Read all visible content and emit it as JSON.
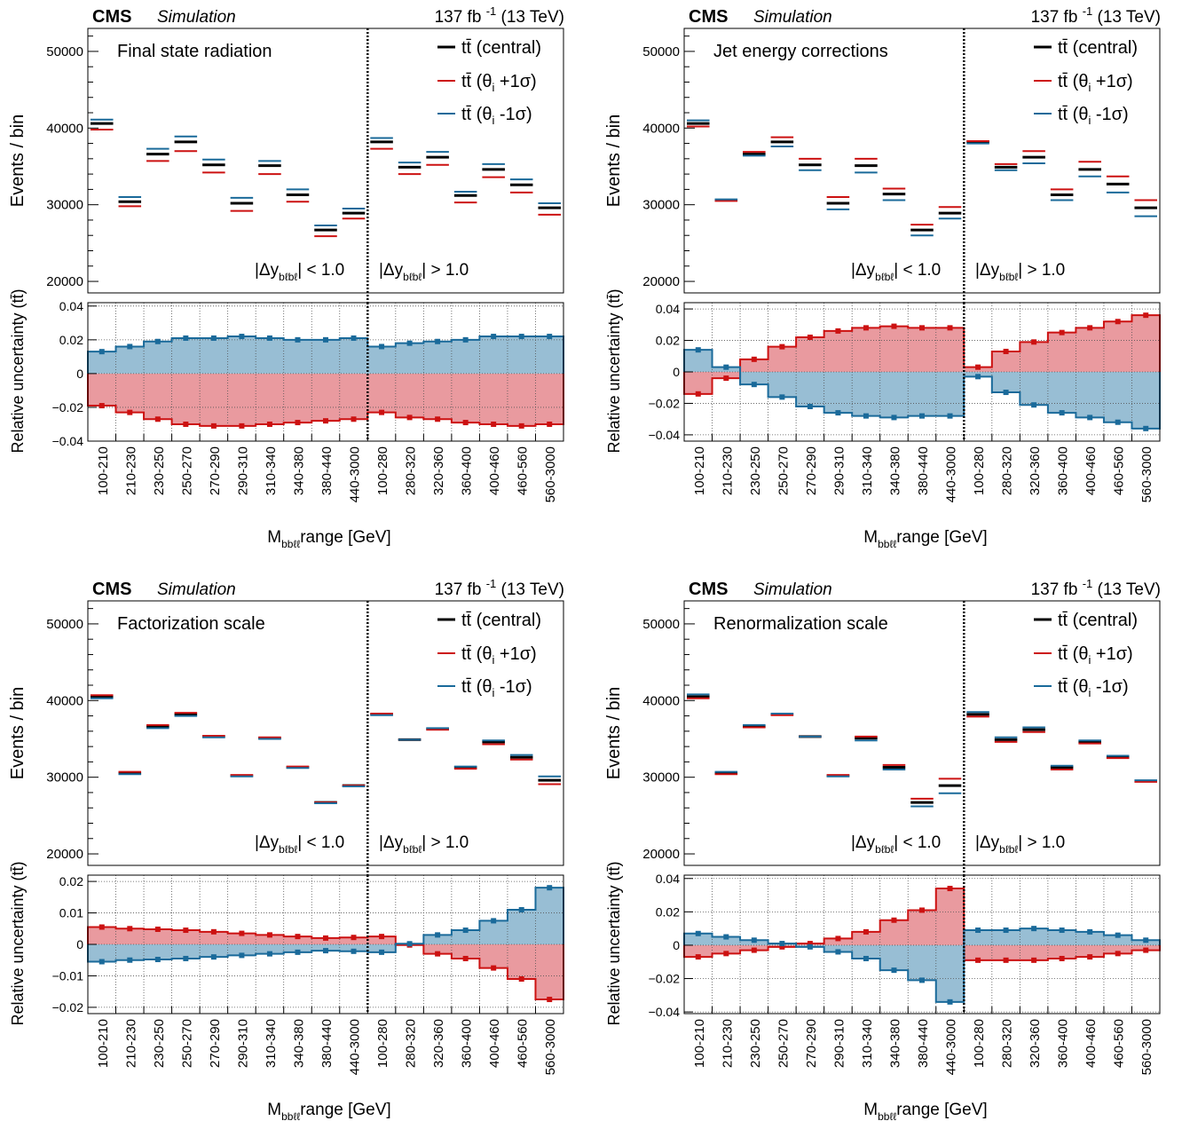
{
  "header": {
    "experiment": "CMS",
    "label": "Simulation",
    "lumi": "137 fb",
    "lumi_exp": "-1",
    "energy": "(13 TeV)"
  },
  "legend": {
    "tt": "tt̄",
    "central": "(central)",
    "up": "(θ",
    "up_sub": "i",
    "up_tail": "+1σ)",
    "down": "(θ",
    "down_sub": "i",
    "down_tail": "-1σ)"
  },
  "regions": {
    "pre": "|Δy",
    "sub": "bℓbℓ",
    "low": "| < 1.0",
    "high": "| > 1.0"
  },
  "axes": {
    "top_ylabel": "Events / bin",
    "bottom_ylabel": "Relative uncertainty (tt̄)",
    "xlabel_pre": "M",
    "xlabel_sub": "bbℓℓ",
    "xlabel_post": "range [GeV]"
  },
  "categories": [
    "100-210",
    "210-230",
    "230-250",
    "250-270",
    "270-290",
    "290-310",
    "310-340",
    "340-380",
    "380-440",
    "440-3000",
    "100-280",
    "280-320",
    "320-360",
    "360-400",
    "400-460",
    "460-560",
    "560-3000"
  ],
  "colors": {
    "central": "#000000",
    "up": "#cc1111",
    "down": "#1a6a9a",
    "up_fill": "#e8959a",
    "down_fill": "#92bbd2"
  },
  "chart_data": [
    {
      "type": "bar",
      "title": "Final state radiation",
      "categories": [
        "100-210",
        "210-230",
        "230-250",
        "250-270",
        "270-290",
        "290-310",
        "310-340",
        "340-380",
        "380-440",
        "440-3000",
        "100-280",
        "280-320",
        "320-360",
        "360-400",
        "400-460",
        "460-560",
        "560-3000"
      ],
      "events_ylim": [
        18500,
        53000
      ],
      "events_ticks": [
        20000,
        30000,
        40000,
        50000
      ],
      "series": [
        {
          "name": "tt̄ (central)",
          "values": [
            40600,
            30400,
            36600,
            38200,
            35200,
            30200,
            35100,
            31300,
            26700,
            28900,
            38200,
            34900,
            36200,
            31200,
            34600,
            32600,
            29600
          ]
        },
        {
          "name": "tt̄ (θi +1σ)",
          "values": [
            39800,
            29800,
            35700,
            37000,
            34200,
            29200,
            34000,
            30400,
            25900,
            28200,
            37300,
            34000,
            35200,
            30300,
            33600,
            31600,
            28700
          ]
        },
        {
          "name": "tt̄ (θi -1σ)",
          "values": [
            41100,
            31000,
            37300,
            38900,
            35900,
            30900,
            35700,
            32000,
            27300,
            29500,
            38700,
            35500,
            36900,
            31700,
            35300,
            33300,
            30200
          ]
        }
      ],
      "ratio_ylim": [
        -0.04,
        0.042
      ],
      "ratio_ticks": [
        -0.04,
        -0.02,
        0,
        0.02,
        0.04
      ],
      "ratio_ticklabels": [
        "−0.04",
        "−0.02",
        "0",
        "0.02",
        "0.04"
      ],
      "ratio_up": [
        -0.019,
        -0.023,
        -0.027,
        -0.03,
        -0.031,
        -0.031,
        -0.03,
        -0.029,
        -0.028,
        -0.027,
        -0.023,
        -0.026,
        -0.027,
        -0.029,
        -0.03,
        -0.031,
        -0.03
      ],
      "ratio_down": [
        0.013,
        0.016,
        0.019,
        0.021,
        0.021,
        0.022,
        0.021,
        0.02,
        0.02,
        0.021,
        0.016,
        0.018,
        0.019,
        0.02,
        0.022,
        0.022,
        0.022
      ]
    },
    {
      "type": "bar",
      "title": "Jet energy corrections",
      "categories": [
        "100-210",
        "210-230",
        "230-250",
        "250-270",
        "270-290",
        "290-310",
        "310-340",
        "340-380",
        "380-440",
        "440-3000",
        "100-280",
        "280-320",
        "320-360",
        "360-400",
        "400-460",
        "460-560",
        "560-3000"
      ],
      "events_ylim": [
        18500,
        53000
      ],
      "events_ticks": [
        20000,
        30000,
        40000,
        50000
      ],
      "series": [
        {
          "name": "tt̄ (central)",
          "values": [
            40600,
            30600,
            36600,
            38200,
            35200,
            30200,
            35100,
            31400,
            26700,
            28900,
            38200,
            34900,
            36200,
            31300,
            34600,
            32700,
            29600
          ]
        },
        {
          "name": "tt̄ (θi +1σ)",
          "values": [
            40200,
            30500,
            36900,
            38800,
            36000,
            31000,
            36000,
            32100,
            27400,
            29700,
            38300,
            35300,
            37000,
            32000,
            35600,
            33700,
            30600
          ]
        },
        {
          "name": "tt̄ (θi -1σ)",
          "values": [
            41000,
            30700,
            36400,
            37600,
            34500,
            29400,
            34200,
            30600,
            26000,
            28200,
            38000,
            34500,
            35400,
            30600,
            33700,
            31600,
            28500
          ]
        }
      ],
      "ratio_ylim": [
        -0.044,
        0.044
      ],
      "ratio_ticks": [
        -0.04,
        -0.02,
        0,
        0.02,
        0.04
      ],
      "ratio_ticklabels": [
        "−0.04",
        "−0.02",
        "0",
        "0.02",
        "0.04"
      ],
      "ratio_up": [
        -0.014,
        -0.004,
        0.008,
        0.016,
        0.022,
        0.026,
        0.028,
        0.029,
        0.028,
        0.028,
        0.003,
        0.013,
        0.019,
        0.025,
        0.028,
        0.032,
        0.036
      ],
      "ratio_down": [
        0.014,
        0.003,
        -0.008,
        -0.016,
        -0.022,
        -0.026,
        -0.028,
        -0.029,
        -0.028,
        -0.028,
        -0.003,
        -0.013,
        -0.021,
        -0.026,
        -0.029,
        -0.032,
        -0.036
      ]
    },
    {
      "type": "bar",
      "title": "Factorization scale",
      "categories": [
        "100-210",
        "210-230",
        "230-250",
        "250-270",
        "270-290",
        "290-310",
        "310-340",
        "340-380",
        "380-440",
        "440-3000",
        "100-280",
        "280-320",
        "320-360",
        "360-400",
        "400-460",
        "460-560",
        "560-3000"
      ],
      "events_ylim": [
        18500,
        53000
      ],
      "events_ticks": [
        20000,
        30000,
        40000,
        50000
      ],
      "series": [
        {
          "name": "tt̄ (central)",
          "values": [
            40500,
            30500,
            36600,
            38200,
            35300,
            30200,
            35100,
            31300,
            26700,
            28900,
            38200,
            34900,
            36300,
            31300,
            34600,
            32600,
            29600
          ]
        },
        {
          "name": "tt̄ (θi +1σ)",
          "values": [
            40700,
            30700,
            36800,
            38400,
            35400,
            30300,
            35200,
            31400,
            26700,
            28900,
            38300,
            34900,
            36200,
            31100,
            34300,
            32300,
            29100
          ]
        },
        {
          "name": "tt̄ (θi -1σ)",
          "values": [
            40300,
            30400,
            36400,
            38000,
            35200,
            30100,
            35000,
            31200,
            26600,
            28800,
            38100,
            34900,
            36400,
            31400,
            34800,
            32900,
            30100
          ]
        }
      ],
      "ratio_ylim": [
        -0.022,
        0.022
      ],
      "ratio_ticks": [
        -0.02,
        -0.01,
        0,
        0.01,
        0.02
      ],
      "ratio_ticklabels": [
        "−0.02",
        "−0.01",
        "0",
        "0.01",
        "0.02"
      ],
      "ratio_up": [
        0.0055,
        0.005,
        0.0048,
        0.0045,
        0.004,
        0.0035,
        0.003,
        0.0025,
        0.002,
        0.0022,
        0.0025,
        -0.0002,
        -0.003,
        -0.0045,
        -0.0075,
        -0.011,
        -0.0175
      ],
      "ratio_down": [
        -0.0055,
        -0.005,
        -0.0048,
        -0.0045,
        -0.004,
        -0.0035,
        -0.003,
        -0.0025,
        -0.002,
        -0.0022,
        -0.0025,
        0.0002,
        0.003,
        0.0045,
        0.0075,
        0.011,
        0.018
      ]
    },
    {
      "type": "bar",
      "title": "Renormalization scale",
      "categories": [
        "100-210",
        "210-230",
        "230-250",
        "250-270",
        "270-290",
        "290-310",
        "310-340",
        "340-380",
        "380-440",
        "440-3000",
        "100-280",
        "280-320",
        "320-360",
        "360-400",
        "400-460",
        "460-560",
        "560-3000"
      ],
      "events_ylim": [
        18500,
        53000
      ],
      "events_ticks": [
        20000,
        30000,
        40000,
        50000
      ],
      "series": [
        {
          "name": "tt̄ (central)",
          "values": [
            40500,
            30500,
            36600,
            38200,
            35300,
            30200,
            35100,
            31300,
            26700,
            28900,
            38200,
            34900,
            36200,
            31300,
            34600,
            32600,
            29500
          ]
        },
        {
          "name": "tt̄ (θi +1σ)",
          "values": [
            40300,
            30400,
            36500,
            38100,
            35300,
            30300,
            35300,
            31600,
            27200,
            29800,
            37900,
            34600,
            35900,
            31000,
            34400,
            32500,
            29400
          ]
        },
        {
          "name": "tt̄ (θi -1σ)",
          "values": [
            40800,
            30700,
            36800,
            38300,
            35300,
            30100,
            34800,
            31000,
            26200,
            27900,
            38500,
            35200,
            36500,
            31500,
            34800,
            32800,
            29600
          ]
        }
      ],
      "ratio_ylim": [
        -0.041,
        0.042
      ],
      "ratio_ticks": [
        -0.04,
        -0.02,
        0,
        0.02,
        0.04
      ],
      "ratio_ticklabels": [
        "−0.04",
        "−0.02",
        "0",
        "0.02",
        "0.04"
      ],
      "ratio_up": [
        -0.007,
        -0.005,
        -0.003,
        -0.001,
        0.001,
        0.004,
        0.008,
        0.015,
        0.021,
        0.034,
        -0.009,
        -0.009,
        -0.009,
        -0.008,
        -0.007,
        -0.005,
        -0.003
      ],
      "ratio_down": [
        0.007,
        0.005,
        0.003,
        0.001,
        -0.001,
        -0.004,
        -0.008,
        -0.015,
        -0.021,
        -0.034,
        0.009,
        0.009,
        0.01,
        0.009,
        0.008,
        0.006,
        0.003
      ]
    }
  ]
}
